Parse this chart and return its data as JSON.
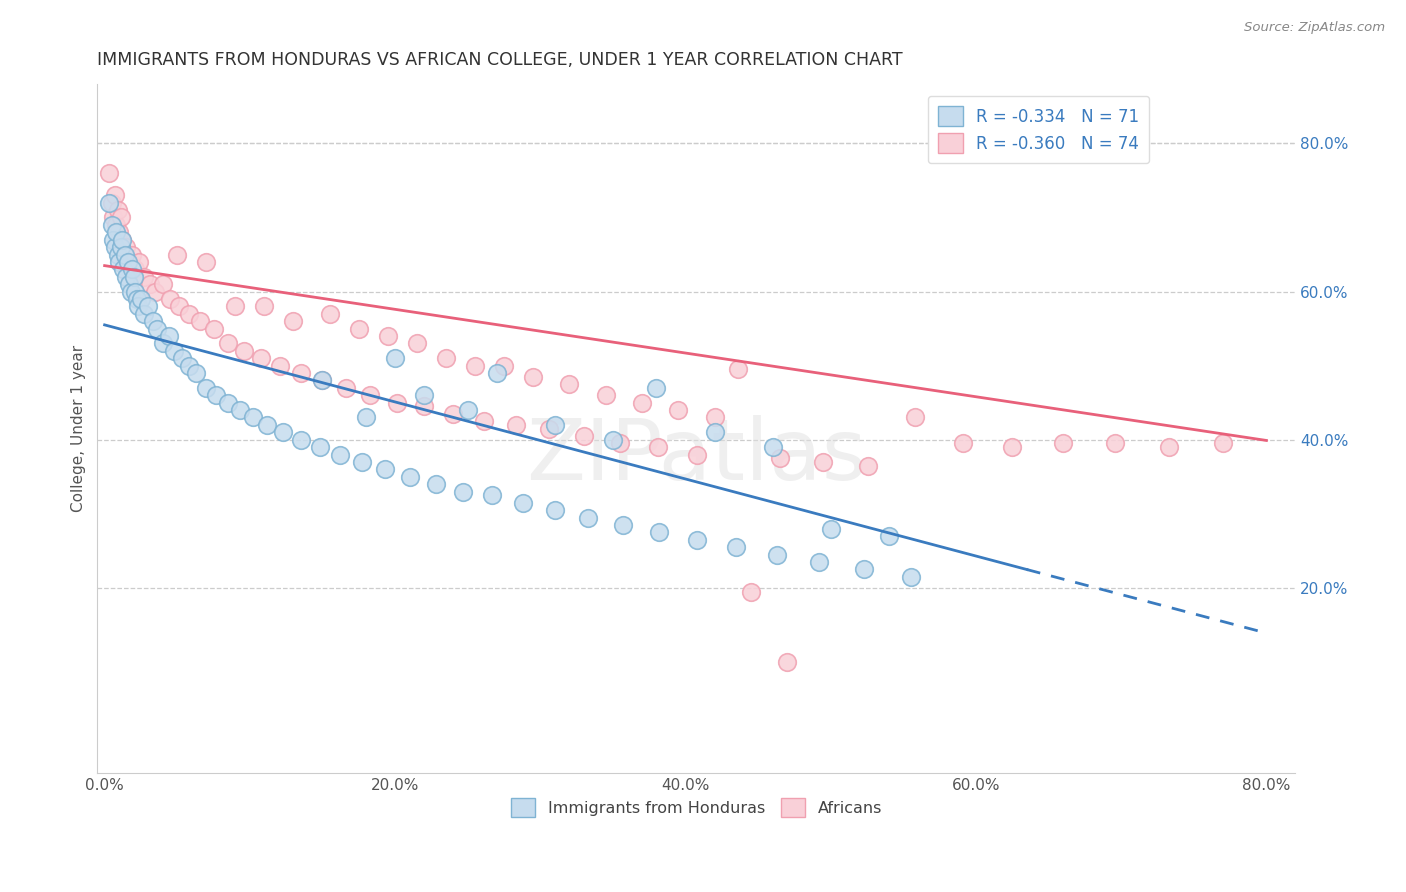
{
  "title": "IMMIGRANTS FROM HONDURAS VS AFRICAN COLLEGE, UNDER 1 YEAR CORRELATION CHART",
  "source": "Source: ZipAtlas.com",
  "ylabel": "College, Under 1 year",
  "legend_blue_r": "R = -0.334",
  "legend_blue_n": "N = 71",
  "legend_pink_r": "R = -0.360",
  "legend_pink_n": "N = 74",
  "legend_label_blue": "Immigrants from Honduras",
  "legend_label_pink": "Africans",
  "xlim": [
    -0.005,
    0.82
  ],
  "ylim": [
    -0.05,
    0.88
  ],
  "xtick_values": [
    0.0,
    0.2,
    0.4,
    0.6,
    0.8
  ],
  "xtick_labels": [
    "0.0%",
    "20.0%",
    "40.0%",
    "60.0%",
    "80.0%"
  ],
  "ytick_values": [
    0.2,
    0.4,
    0.6,
    0.8
  ],
  "ytick_labels": [
    "20.0%",
    "40.0%",
    "60.0%",
    "80.0%"
  ],
  "blue_fill_color": "#c6dcee",
  "blue_edge_color": "#7fb3d3",
  "pink_fill_color": "#f9d0d8",
  "pink_edge_color": "#f0a0b0",
  "blue_line_color": "#3a7bbf",
  "pink_line_color": "#e8607a",
  "grid_color": "#cccccc",
  "background_color": "#ffffff",
  "title_color": "#333333",
  "title_fontsize": 12.5,
  "blue_slope": -0.52,
  "blue_intercept": 0.555,
  "pink_slope": -0.295,
  "pink_intercept": 0.635,
  "blue_trend_solid_end": 0.635,
  "watermark_text": "ZIPatlas",
  "n_blue": 71,
  "n_pink": 74,
  "blue_x": [
    0.003,
    0.005,
    0.006,
    0.007,
    0.008,
    0.009,
    0.01,
    0.011,
    0.012,
    0.013,
    0.014,
    0.015,
    0.016,
    0.017,
    0.018,
    0.019,
    0.02,
    0.021,
    0.022,
    0.023,
    0.025,
    0.027,
    0.03,
    0.033,
    0.036,
    0.04,
    0.044,
    0.048,
    0.053,
    0.058,
    0.063,
    0.07,
    0.077,
    0.085,
    0.093,
    0.102,
    0.112,
    0.123,
    0.135,
    0.148,
    0.162,
    0.177,
    0.193,
    0.21,
    0.228,
    0.247,
    0.267,
    0.288,
    0.31,
    0.333,
    0.357,
    0.382,
    0.408,
    0.435,
    0.463,
    0.492,
    0.523,
    0.555,
    0.15,
    0.18,
    0.2,
    0.22,
    0.25,
    0.27,
    0.31,
    0.35,
    0.38,
    0.42,
    0.46,
    0.5,
    0.54
  ],
  "blue_y": [
    0.72,
    0.69,
    0.67,
    0.66,
    0.68,
    0.65,
    0.64,
    0.66,
    0.67,
    0.63,
    0.65,
    0.62,
    0.64,
    0.61,
    0.6,
    0.63,
    0.62,
    0.6,
    0.59,
    0.58,
    0.59,
    0.57,
    0.58,
    0.56,
    0.55,
    0.53,
    0.54,
    0.52,
    0.51,
    0.5,
    0.49,
    0.47,
    0.46,
    0.45,
    0.44,
    0.43,
    0.42,
    0.41,
    0.4,
    0.39,
    0.38,
    0.37,
    0.36,
    0.35,
    0.34,
    0.33,
    0.325,
    0.315,
    0.305,
    0.295,
    0.285,
    0.275,
    0.265,
    0.255,
    0.245,
    0.235,
    0.225,
    0.215,
    0.48,
    0.43,
    0.51,
    0.46,
    0.44,
    0.49,
    0.42,
    0.4,
    0.47,
    0.41,
    0.39,
    0.28,
    0.27
  ],
  "pink_x": [
    0.003,
    0.005,
    0.006,
    0.007,
    0.008,
    0.009,
    0.01,
    0.011,
    0.012,
    0.013,
    0.015,
    0.017,
    0.019,
    0.021,
    0.024,
    0.027,
    0.031,
    0.035,
    0.04,
    0.045,
    0.051,
    0.058,
    0.066,
    0.075,
    0.085,
    0.096,
    0.108,
    0.121,
    0.135,
    0.15,
    0.166,
    0.183,
    0.201,
    0.22,
    0.24,
    0.261,
    0.283,
    0.306,
    0.33,
    0.355,
    0.381,
    0.408,
    0.436,
    0.465,
    0.495,
    0.526,
    0.558,
    0.591,
    0.625,
    0.66,
    0.696,
    0.733,
    0.77,
    0.05,
    0.07,
    0.09,
    0.11,
    0.13,
    0.155,
    0.175,
    0.195,
    0.215,
    0.235,
    0.255,
    0.275,
    0.295,
    0.32,
    0.345,
    0.37,
    0.395,
    0.42,
    0.445,
    0.47
  ],
  "pink_y": [
    0.76,
    0.72,
    0.7,
    0.73,
    0.69,
    0.71,
    0.68,
    0.7,
    0.67,
    0.65,
    0.66,
    0.64,
    0.65,
    0.63,
    0.64,
    0.62,
    0.61,
    0.6,
    0.61,
    0.59,
    0.58,
    0.57,
    0.56,
    0.55,
    0.53,
    0.52,
    0.51,
    0.5,
    0.49,
    0.48,
    0.47,
    0.46,
    0.45,
    0.445,
    0.435,
    0.425,
    0.42,
    0.415,
    0.405,
    0.395,
    0.39,
    0.38,
    0.495,
    0.375,
    0.37,
    0.365,
    0.43,
    0.395,
    0.39,
    0.395,
    0.395,
    0.39,
    0.395,
    0.65,
    0.64,
    0.58,
    0.58,
    0.56,
    0.57,
    0.55,
    0.54,
    0.53,
    0.51,
    0.5,
    0.5,
    0.485,
    0.475,
    0.46,
    0.45,
    0.44,
    0.43,
    0.195,
    0.1
  ]
}
